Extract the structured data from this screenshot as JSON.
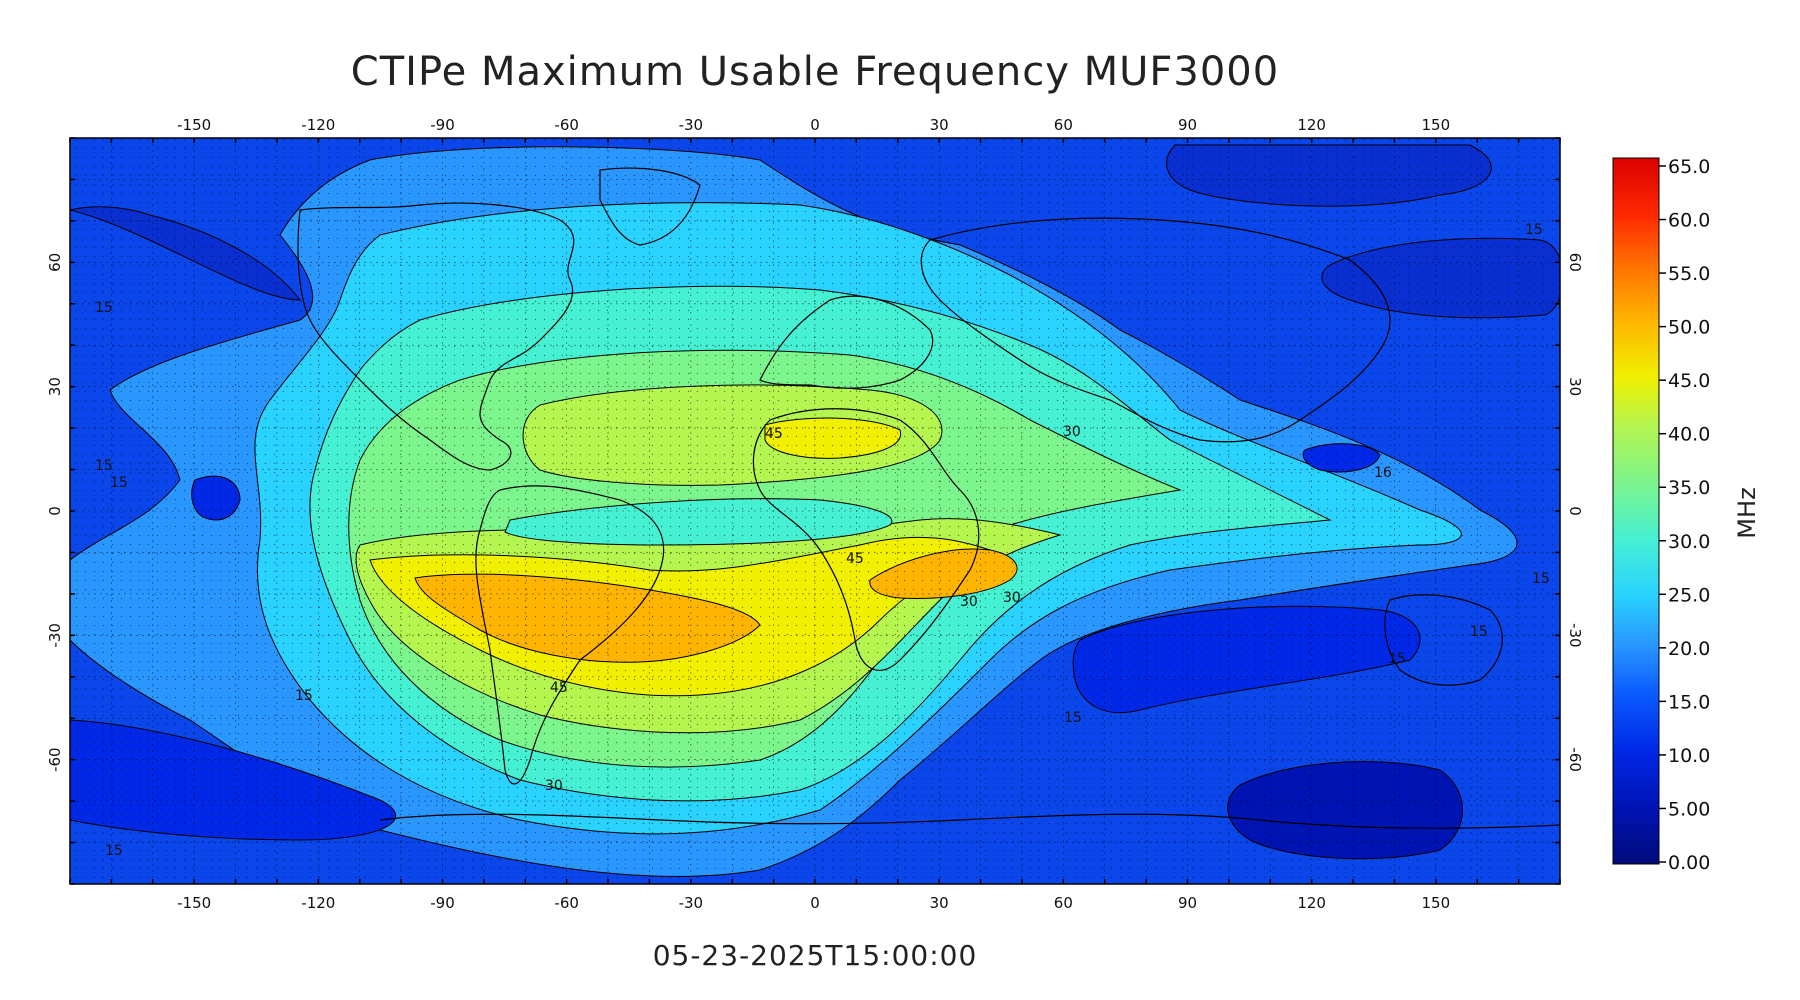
{
  "title": "CTIPe Maximum Usable Frequency MUF3000",
  "timestamp": "05-23-2025T15:00:00",
  "colorbar": {
    "unit": "MHz",
    "ticks": [
      "65.0",
      "60.0",
      "55.0",
      "50.0",
      "45.0",
      "40.0",
      "35.0",
      "30.0",
      "25.0",
      "20.0",
      "15.0",
      "10.0",
      "5.00",
      "0.00"
    ],
    "colors": [
      "#000a7a",
      "#0014b4",
      "#0028e6",
      "#0a5aff",
      "#2a96ff",
      "#2ad2ff",
      "#46f0d2",
      "#7cf58c",
      "#b4f550",
      "#f0f000",
      "#ffb400",
      "#ff6e00",
      "#ff2800",
      "#dc0000"
    ]
  },
  "axes": {
    "lon_ticks": [
      "-150",
      "-120",
      "-90",
      "-60",
      "-30",
      "0",
      "30",
      "60",
      "90",
      "120",
      "150"
    ],
    "lat_ticks": [
      "60",
      "30",
      "0",
      "-30",
      "-60"
    ]
  },
  "contour_labels": [
    "45",
    "45",
    "45",
    "30",
    "15",
    "15",
    "15",
    "15",
    "15",
    "15",
    "15",
    "15",
    "15",
    "15",
    "30",
    "30",
    "30",
    "16"
  ],
  "chart_data": {
    "type": "heatmap",
    "title": "CTIPe Maximum Usable Frequency MUF3000",
    "subtitle": "05-23-2025T15:00:00",
    "colorbar_label": "MHz",
    "colorbar_range": [
      0,
      65
    ],
    "x_range": [
      -180,
      180
    ],
    "y_range": [
      -90,
      90
    ],
    "grid": true,
    "peak_regions": [
      {
        "lon": 10,
        "lat": 18,
        "value": 47
      },
      {
        "lon": -70,
        "lat": -25,
        "value": 50
      },
      {
        "lon": 30,
        "lat": -12,
        "value": 50
      }
    ],
    "low_regions": [
      {
        "lon": 130,
        "lat": -70,
        "value": 6
      },
      {
        "lon": 150,
        "lat": 65,
        "value": 8
      },
      {
        "lon": 120,
        "lat": 15,
        "value": 10
      }
    ]
  }
}
